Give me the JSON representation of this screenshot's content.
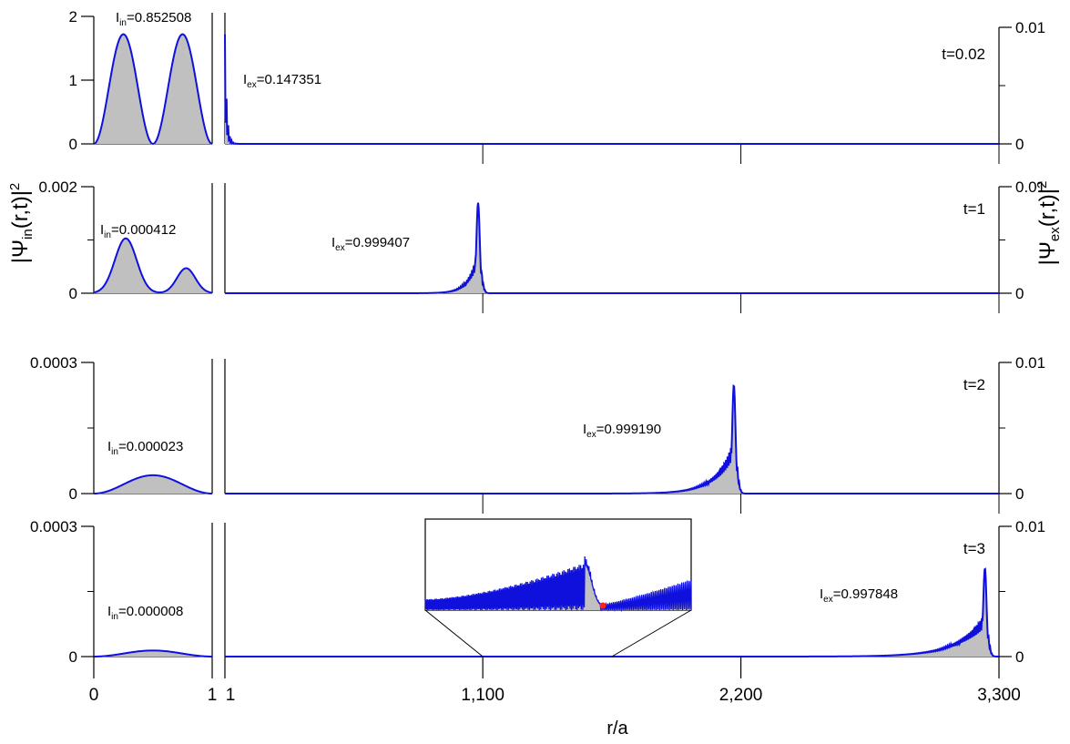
{
  "chart_data": {
    "type": "area",
    "xlabel": "r/a",
    "ylabel_left": "|Ψ_in(r,t)|²",
    "ylabel_right": "|Ψ_ex(r,t)|²",
    "x_ticks_inner": [
      "0",
      "1"
    ],
    "x_ticks_outer": [
      "1",
      "1,100",
      "2,200",
      "3,300"
    ],
    "inner_region": {
      "xlim": [
        0,
        1
      ]
    },
    "outer_region": {
      "xlim": [
        1,
        3300
      ]
    },
    "right_axis": {
      "ylim": [
        0,
        0.01
      ],
      "ticks": [
        "0",
        "0.01"
      ]
    },
    "colors": {
      "curve": "#1010dd",
      "fill": "#c0c0c0",
      "marker": "#ff2020"
    },
    "panels": [
      {
        "time": "t=0.02",
        "inner_ylim": [
          0,
          2
        ],
        "inner_ticks": [
          "0",
          "1",
          "2"
        ],
        "inner_norm": {
          "label": "I",
          "sub": "in",
          "value": "=0.852508"
        },
        "outer_norm": {
          "label": "I",
          "sub": "ex",
          "value": "=0.147351"
        },
        "inner_curve": {
          "kind": "sin4",
          "peak": 1.72
        },
        "outer_curve": {
          "kind": "spike",
          "center": 10,
          "peak": 0.0094
        }
      },
      {
        "time": "t=1",
        "inner_ylim": [
          0,
          0.002
        ],
        "inner_ticks": [
          "0",
          "0.002"
        ],
        "inner_norm": {
          "label": "I",
          "sub": "in",
          "value": "=0.000412"
        },
        "outer_norm": {
          "label": "I",
          "sub": "ex",
          "value": "=0.999407"
        },
        "inner_curve": {
          "kind": "two_lobe",
          "peaks": [
            0.00103,
            0.00047
          ]
        },
        "outer_curve": {
          "kind": "packet",
          "center": 1080,
          "peak": 0.0085
        }
      },
      {
        "time": "t=2",
        "inner_ylim": [
          0,
          0.0003
        ],
        "inner_ticks": [
          "0",
          "0.0003"
        ],
        "inner_norm": {
          "label": "I",
          "sub": "in",
          "value": "=0.000023"
        },
        "outer_norm": {
          "label": "I",
          "sub": "ex",
          "value": "=0.999190"
        },
        "inner_curve": {
          "kind": "bump",
          "peak": 4.2e-05
        },
        "outer_curve": {
          "kind": "packet",
          "center": 2170,
          "peak": 0.0083
        }
      },
      {
        "time": "t=3",
        "inner_ylim": [
          0,
          0.0003
        ],
        "inner_ticks": [
          "0",
          "0.0003"
        ],
        "inner_norm": {
          "label": "I",
          "sub": "in",
          "value": "=0.000008"
        },
        "outer_norm": {
          "label": "I",
          "sub": "ex",
          "value": "=0.997848"
        },
        "inner_curve": {
          "kind": "bump",
          "peak": 1.4e-05
        },
        "outer_curve": {
          "kind": "packet",
          "center": 3240,
          "peak": 0.0068
        },
        "inset": {
          "zoom_range": [
            1100,
            1650
          ]
        }
      }
    ]
  }
}
